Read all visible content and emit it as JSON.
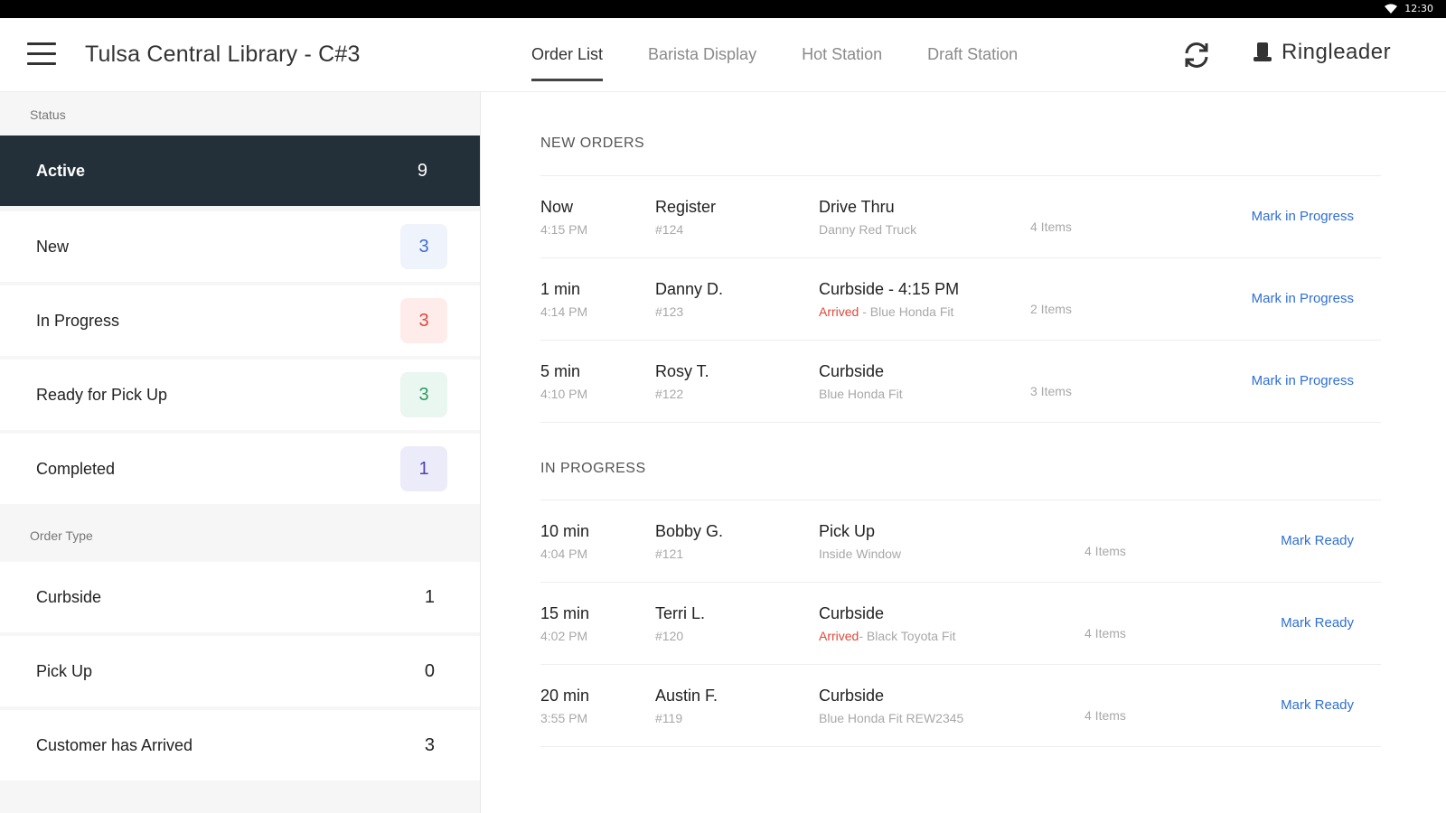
{
  "status_bar": {
    "time": "12:30"
  },
  "app": {
    "title": "Tulsa Central Library - C#3",
    "brand": "Ringleader"
  },
  "tabs": [
    {
      "label": "Order List",
      "active": true
    },
    {
      "label": "Barista Display"
    },
    {
      "label": "Hot Station"
    },
    {
      "label": "Draft Station"
    }
  ],
  "sidebar": {
    "status_label": "Status",
    "status_items": [
      {
        "label": "Active",
        "count": "9"
      },
      {
        "label": "New",
        "count": "3"
      },
      {
        "label": "In Progress",
        "count": "3"
      },
      {
        "label": "Ready for Pick Up",
        "count": "3"
      },
      {
        "label": "Completed",
        "count": "1"
      }
    ],
    "order_type_label": "Order Type",
    "order_type_items": [
      {
        "label": "Curbside",
        "count": "1"
      },
      {
        "label": "Pick Up",
        "count": "0"
      },
      {
        "label": "Customer has Arrived",
        "count": "3"
      }
    ]
  },
  "new_orders": {
    "heading": "NEW ORDERS",
    "rows": [
      {
        "elapsed": "Now",
        "time": "4:15 PM",
        "name": "Register",
        "number": "#124",
        "type": "Drive Thru",
        "arrived": "",
        "detail": "Danny Red Truck",
        "items": "4 Items",
        "action": "Mark in Progress"
      },
      {
        "elapsed": "1 min",
        "time": "4:14 PM",
        "name": "Danny D.",
        "number": "#123",
        "type": "Curbside - 4:15 PM",
        "arrived": "Arrived",
        "detail": " - Blue Honda Fit",
        "items": "2 Items",
        "action": "Mark in Progress"
      },
      {
        "elapsed": "5 min",
        "time": "4:10 PM",
        "name": "Rosy T.",
        "number": "#122",
        "type": "Curbside",
        "arrived": "",
        "detail": "Blue Honda Fit",
        "items": "3 Items",
        "action": "Mark in Progress"
      }
    ]
  },
  "in_progress": {
    "heading": "IN PROGRESS",
    "rows": [
      {
        "elapsed": "10 min",
        "time": "4:04 PM",
        "name": "Bobby G.",
        "number": "#121",
        "type": "Pick Up",
        "arrived": "",
        "detail": "Inside Window",
        "items": "4 Items",
        "action": "Mark Ready"
      },
      {
        "elapsed": "15 min",
        "time": "4:02 PM",
        "name": "Terri L.",
        "number": "#120",
        "type": "Curbside",
        "arrived": "Arrived",
        "detail": "- Black Toyota Fit",
        "items": "4 Items",
        "action": "Mark Ready"
      },
      {
        "elapsed": "20 min",
        "time": "3:55 PM",
        "name": "Austin F.",
        "number": "#119",
        "type": "Curbside",
        "arrived": "",
        "detail": "Blue Honda Fit REW2345",
        "items": "4 Items",
        "action": "Mark Ready"
      }
    ]
  }
}
